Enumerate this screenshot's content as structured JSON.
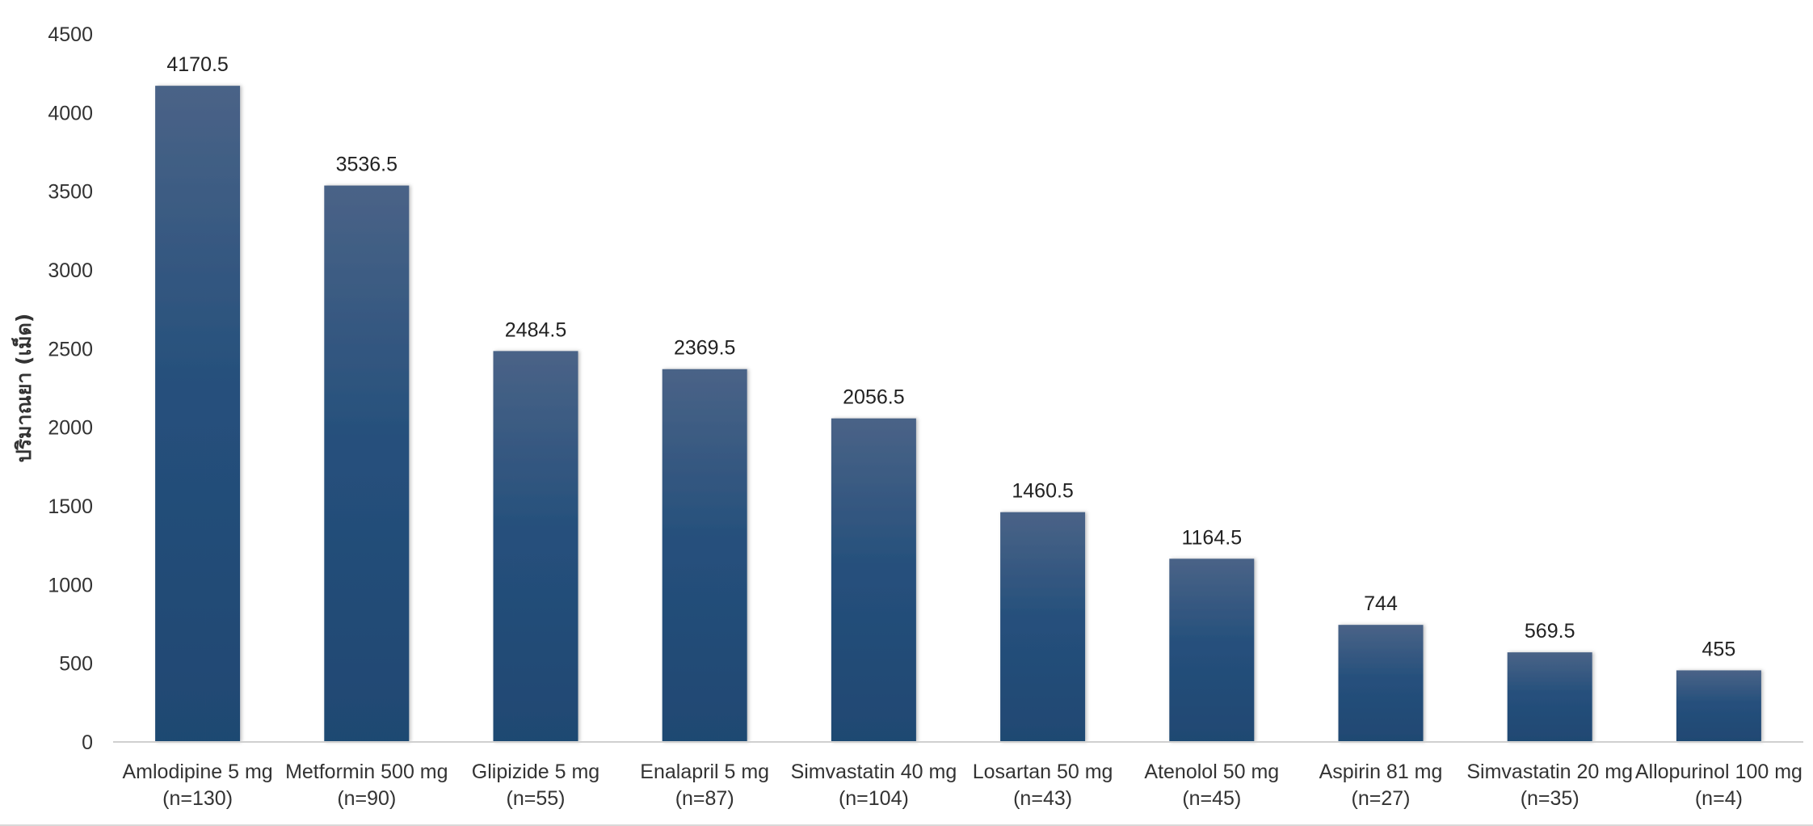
{
  "chart_data": {
    "type": "bar",
    "title": "",
    "xlabel": "",
    "ylabel": "ปริมาณยา (เม็ด)",
    "ylim": [
      0,
      4500
    ],
    "yticks": [
      0,
      500,
      1000,
      1500,
      2000,
      2500,
      3000,
      3500,
      4000,
      4500
    ],
    "grid": false,
    "legend": "none",
    "bar_color_top": "#4a6387",
    "bar_color_bottom": "#1f4872",
    "categories": [
      [
        "Amlodipine 5 mg",
        "(n=130)"
      ],
      [
        "Metformin 500 mg",
        "(n=90)"
      ],
      [
        "Glipizide 5 mg",
        "(n=55)"
      ],
      [
        "Enalapril 5 mg",
        "(n=87)"
      ],
      [
        "Simvastatin 40 mg",
        "(n=104)"
      ],
      [
        "Losartan 50 mg",
        "(n=43)"
      ],
      [
        "Atenolol 50 mg",
        "(n=45)"
      ],
      [
        "Aspirin 81 mg",
        "(n=27)"
      ],
      [
        "Simvastatin 20 mg",
        "(n=35)"
      ],
      [
        "Allopurinol 100 mg",
        "(n=4)"
      ]
    ],
    "values": [
      4170.5,
      3536.5,
      2484.5,
      2369.5,
      2056.5,
      1460.5,
      1164.5,
      744,
      569.5,
      455
    ],
    "value_labels": [
      "4170.5",
      "3536.5",
      "2484.5",
      "2369.5",
      "2056.5",
      "1460.5",
      "1164.5",
      "744",
      "569.5",
      "455"
    ]
  }
}
